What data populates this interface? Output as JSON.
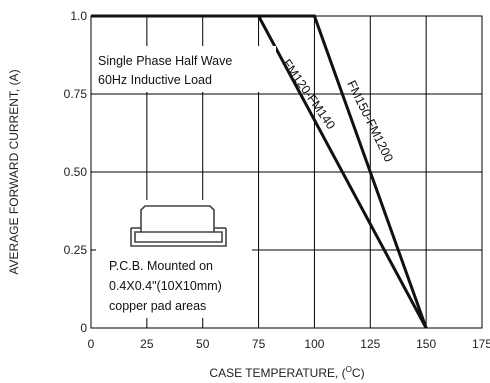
{
  "chart_data": {
    "type": "line",
    "xlabel_prefix": "CASE TEMPERATURE, (",
    "xlabel_unit": "O",
    "xlabel_suffix": "C)",
    "ylabel": "AVERAGE FORWARD CURRENT, (A)",
    "xlim": [
      0,
      175
    ],
    "ylim": [
      0,
      1.0
    ],
    "x_ticks": [
      0,
      25,
      50,
      75,
      100,
      125,
      150,
      175
    ],
    "y_ticks": [
      0,
      0.25,
      0.5,
      0.75,
      1.0
    ],
    "y_tick_labels": [
      "0",
      "0.25",
      "0.50",
      "0.75",
      "1.0"
    ],
    "grid": true,
    "series": [
      {
        "name": "FM120-FM140",
        "x": [
          0,
          75,
          150
        ],
        "y": [
          1.0,
          1.0,
          0
        ]
      },
      {
        "name": "FM150-FM1200",
        "x": [
          0,
          100,
          150
        ],
        "y": [
          1.0,
          1.0,
          0
        ]
      }
    ],
    "annotations": {
      "load_line1": "Single Phase Half Wave",
      "load_line2": "60Hz Inductive Load",
      "pcb_line1": "P.C.B. Mounted on",
      "pcb_line2": "0.4X0.4\"(10X10mm)",
      "pcb_line3": "copper pad areas"
    }
  },
  "colors": {
    "line": "#111111",
    "grid": "#000000",
    "package_icon": "#444444"
  },
  "icons": {
    "package": "smd-package-icon"
  }
}
